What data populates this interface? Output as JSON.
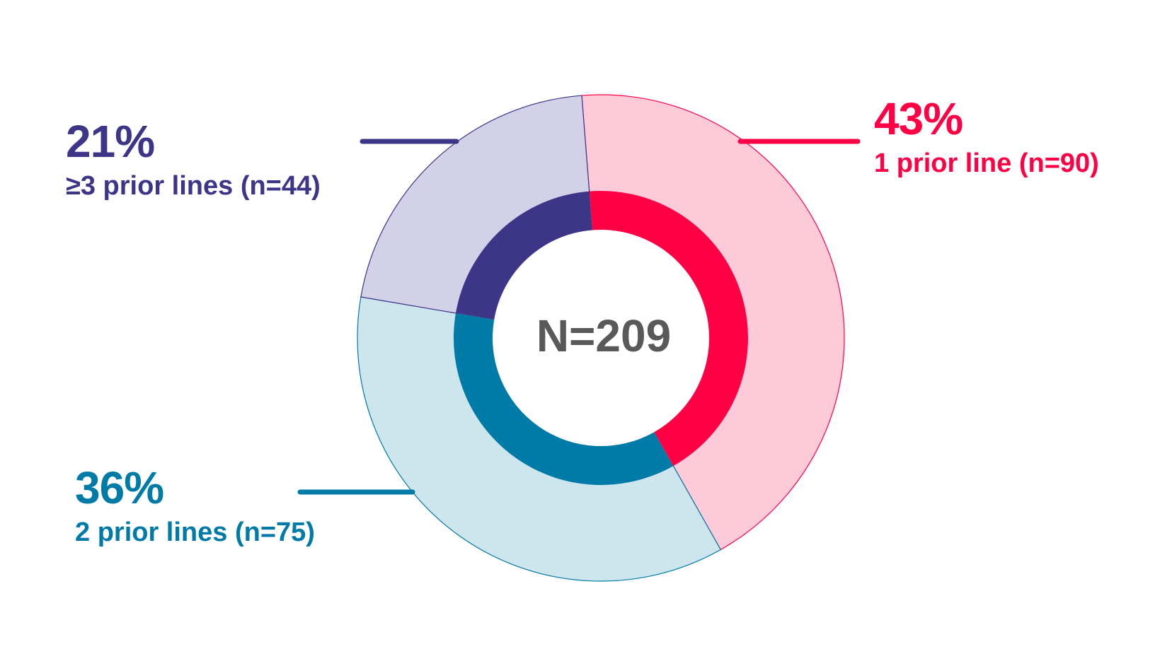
{
  "chart_data": {
    "type": "pie",
    "style": "double-ring donut",
    "center_label": "N=209",
    "slices": [
      {
        "percent_label": "43%",
        "label": "1 prior line (n=90)",
        "value": 90,
        "color": "#ff0044",
        "light_color": "#fdcad9"
      },
      {
        "percent_label": "36%",
        "label": "2 prior lines (n=75)",
        "value": 75,
        "color": "#007aa6",
        "light_color": "#cde6ee"
      },
      {
        "percent_label": "21%",
        "label": "≥3 prior lines (n=44)",
        "value": 44,
        "color": "#3d3587",
        "light_color": "#d3d1e8"
      }
    ]
  }
}
